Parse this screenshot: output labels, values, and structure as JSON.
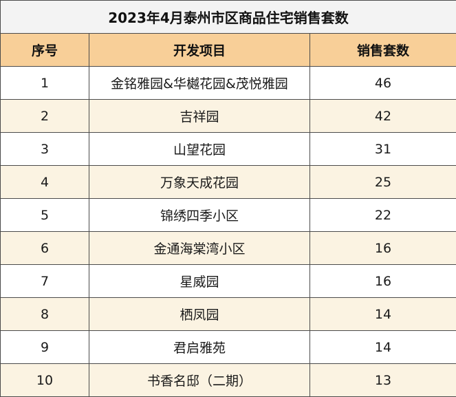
{
  "title": "2023年4月泰州市区商品住宅销售套数",
  "headers": {
    "rank": "序号",
    "project": "开发项目",
    "units": "销售套数"
  },
  "rows": [
    {
      "rank": "1",
      "project": "金铭雅园&华樾花园&茂悦雅园",
      "units": "46"
    },
    {
      "rank": "2",
      "project": "吉祥园",
      "units": "42"
    },
    {
      "rank": "3",
      "project": "山望花园",
      "units": "31"
    },
    {
      "rank": "4",
      "project": "万象天成花园",
      "units": "25"
    },
    {
      "rank": "5",
      "project": "锦绣四季小区",
      "units": "22"
    },
    {
      "rank": "6",
      "project": "金通海棠湾小区",
      "units": "16"
    },
    {
      "rank": "7",
      "project": "星威园",
      "units": "16"
    },
    {
      "rank": "8",
      "project": "栖凤园",
      "units": "14"
    },
    {
      "rank": "9",
      "project": "君启雅苑",
      "units": "14"
    },
    {
      "rank": "10",
      "project": "书香名邸（二期）",
      "units": "13"
    }
  ],
  "colors": {
    "header_bg": "#f8cf98",
    "title_bg": "#f3f3f3",
    "stripe_bg": "#fbf3e2",
    "border": "#4a4a4a"
  }
}
